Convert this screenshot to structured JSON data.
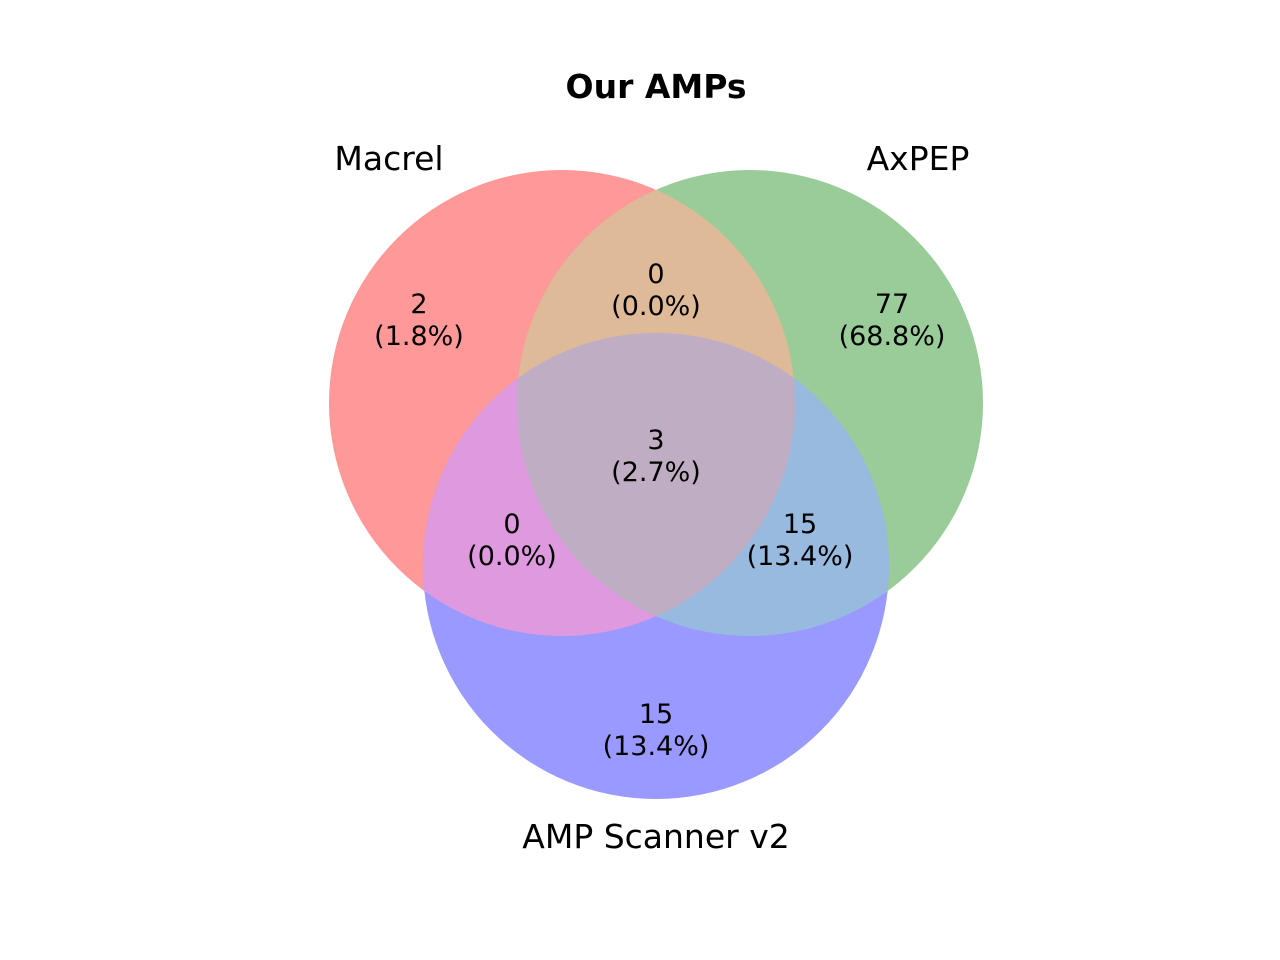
{
  "title": "Our AMPs",
  "sets": [
    {
      "key": "macrel",
      "label": "Macrel",
      "color": "#ff9999"
    },
    {
      "key": "axpep",
      "label": "AxPEP",
      "color": "#99cc99"
    },
    {
      "key": "ampscanner",
      "label": "AMP Scanner v2",
      "color": "#9999ff"
    }
  ],
  "regions": {
    "macrel_only": {
      "count": "2",
      "pct": "(1.8%)"
    },
    "axpep_only": {
      "count": "77",
      "pct": "(68.8%)"
    },
    "ampscanner_only": {
      "count": "15",
      "pct": "(13.4%)"
    },
    "macrel_axpep": {
      "count": "0",
      "pct": "(0.0%)"
    },
    "macrel_ampscanner": {
      "count": "0",
      "pct": "(0.0%)"
    },
    "axpep_ampscanner": {
      "count": "15",
      "pct": "(13.4%)"
    },
    "all_three": {
      "count": "3",
      "pct": "(2.7%)"
    }
  },
  "region_colors": {
    "macrel_axpep": "#dfba99",
    "macrel_ampscanner": "#df99df",
    "axpep_ampscanner": "#99badf",
    "all_three": "#bfadc3"
  }
}
